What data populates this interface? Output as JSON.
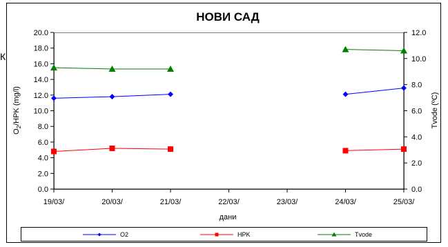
{
  "cutoff_glyph": "К",
  "chart_data": {
    "type": "line",
    "title": "НОВИ САД",
    "xlabel": "дани",
    "ylabel": "O",
    "ylabel_sub": "2",
    "ylabel_rest": "/HPK (mg/l)",
    "y2label": "Tvode (ºC)",
    "categories": [
      "19/03/",
      "20/03/",
      "21/03/",
      "22/03/",
      "23/03/",
      "24/03/",
      "25/03/"
    ],
    "ylim": [
      0,
      20
    ],
    "yticks": [
      "0.0",
      "2.0",
      "4.0",
      "6.0",
      "8.0",
      "10.0",
      "12.0",
      "14.0",
      "16.0",
      "18.0",
      "20.0"
    ],
    "y2lim": [
      0,
      12
    ],
    "y2ticks": [
      "0.0",
      "2.0",
      "4.0",
      "6.0",
      "8.0",
      "10.0",
      "12.0"
    ],
    "legend_position": "bottom",
    "series": [
      {
        "name": "O2",
        "axis": "left",
        "color": "#0000ff",
        "marker": "diamond",
        "values": [
          11.6,
          11.8,
          12.1,
          null,
          null,
          12.1,
          12.9
        ]
      },
      {
        "name": "HPK",
        "axis": "left",
        "color": "#ff0000",
        "marker": "square",
        "values": [
          4.8,
          5.2,
          5.1,
          null,
          null,
          4.9,
          5.1
        ]
      },
      {
        "name": "Tvode",
        "axis": "right",
        "color": "#008000",
        "marker": "triangle",
        "values": [
          9.3,
          9.2,
          9.2,
          null,
          null,
          10.7,
          10.6
        ]
      }
    ]
  }
}
